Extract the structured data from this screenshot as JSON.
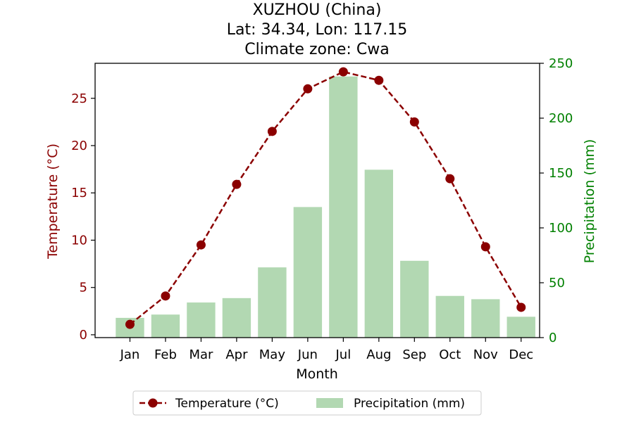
{
  "chart_data": {
    "type": "bar+line",
    "title_lines": [
      "XUZHOU (China)",
      "Lat: 34.34, Lon: 117.15",
      "Climate zone: Cwa"
    ],
    "xlabel": "Month",
    "categories": [
      "Jan",
      "Feb",
      "Mar",
      "Apr",
      "May",
      "Jun",
      "Jul",
      "Aug",
      "Sep",
      "Oct",
      "Nov",
      "Dec"
    ],
    "left_axis": {
      "label": "Temperature (°C)",
      "ylim": [
        -0.3,
        28.7
      ],
      "ticks": [
        0,
        5,
        10,
        15,
        20,
        25
      ],
      "color": "#8b0000"
    },
    "right_axis": {
      "label": "Precipitation (mm)",
      "ylim": [
        0,
        250
      ],
      "ticks": [
        0,
        50,
        100,
        150,
        200,
        250
      ],
      "color": "#008000"
    },
    "series": [
      {
        "name": "Temperature (°C)",
        "kind": "line",
        "axis": "left",
        "color": "#8b0000",
        "style": "dashed-with-circle-markers",
        "values": [
          1.1,
          4.1,
          9.5,
          15.9,
          21.5,
          26.0,
          27.8,
          26.9,
          22.5,
          16.5,
          9.3,
          2.9
        ]
      },
      {
        "name": "Precipitation (mm)",
        "kind": "bar",
        "axis": "right",
        "color": "#b2d8b2",
        "values": [
          18,
          21,
          32,
          36,
          64,
          119,
          238,
          153,
          70,
          38,
          35,
          19
        ]
      }
    ],
    "legend": {
      "placement": "bottom-center",
      "entries": [
        "Temperature (°C)",
        "Precipitation (mm)"
      ]
    },
    "grid": false
  }
}
